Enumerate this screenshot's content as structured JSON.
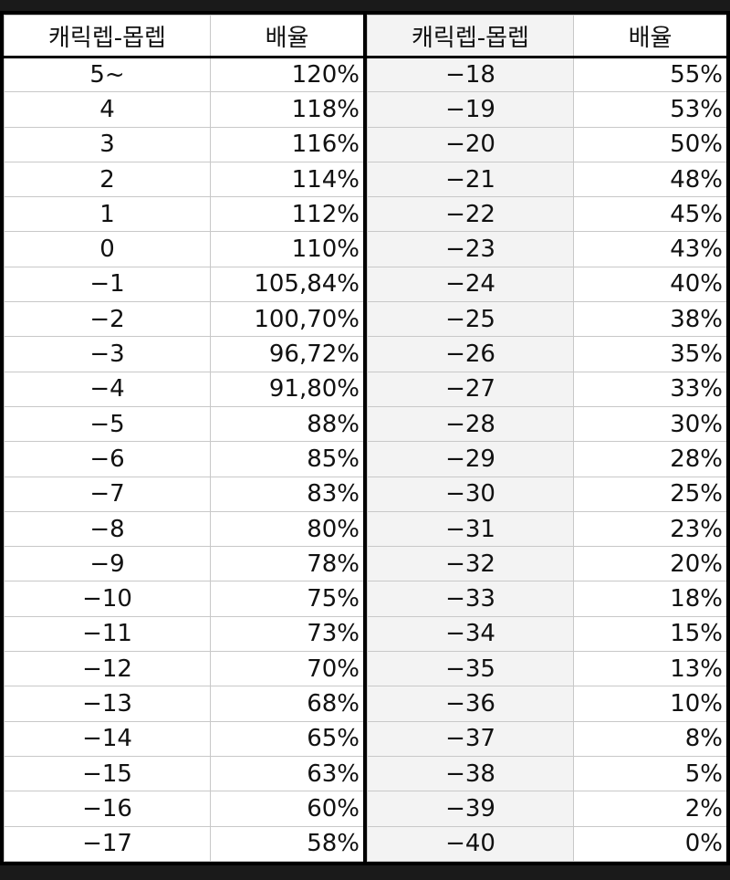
{
  "headers": {
    "level": "캐릭렙-몹렙",
    "rate": "배율"
  },
  "left_rows": [
    {
      "level": "5~",
      "rate": "120%"
    },
    {
      "level": "4",
      "rate": "118%"
    },
    {
      "level": "3",
      "rate": "116%"
    },
    {
      "level": "2",
      "rate": "114%"
    },
    {
      "level": "1",
      "rate": "112%"
    },
    {
      "level": "0",
      "rate": "110%"
    },
    {
      "level": "−1",
      "rate": "105,84%"
    },
    {
      "level": "−2",
      "rate": "100,70%"
    },
    {
      "level": "−3",
      "rate": "96,72%"
    },
    {
      "level": "−4",
      "rate": "91,80%"
    },
    {
      "level": "−5",
      "rate": "88%"
    },
    {
      "level": "−6",
      "rate": "85%"
    },
    {
      "level": "−7",
      "rate": "83%"
    },
    {
      "level": "−8",
      "rate": "80%"
    },
    {
      "level": "−9",
      "rate": "78%"
    },
    {
      "level": "−10",
      "rate": "75%"
    },
    {
      "level": "−11",
      "rate": "73%"
    },
    {
      "level": "−12",
      "rate": "70%"
    },
    {
      "level": "−13",
      "rate": "68%"
    },
    {
      "level": "−14",
      "rate": "65%"
    },
    {
      "level": "−15",
      "rate": "63%"
    },
    {
      "level": "−16",
      "rate": "60%"
    },
    {
      "level": "−17",
      "rate": "58%"
    }
  ],
  "right_rows": [
    {
      "level": "−18",
      "rate": "55%"
    },
    {
      "level": "−19",
      "rate": "53%"
    },
    {
      "level": "−20",
      "rate": "50%"
    },
    {
      "level": "−21",
      "rate": "48%"
    },
    {
      "level": "−22",
      "rate": "45%"
    },
    {
      "level": "−23",
      "rate": "43%"
    },
    {
      "level": "−24",
      "rate": "40%"
    },
    {
      "level": "−25",
      "rate": "38%"
    },
    {
      "level": "−26",
      "rate": "35%"
    },
    {
      "level": "−27",
      "rate": "33%"
    },
    {
      "level": "−28",
      "rate": "30%"
    },
    {
      "level": "−29",
      "rate": "28%"
    },
    {
      "level": "−30",
      "rate": "25%"
    },
    {
      "level": "−31",
      "rate": "23%"
    },
    {
      "level": "−32",
      "rate": "20%"
    },
    {
      "level": "−33",
      "rate": "18%"
    },
    {
      "level": "−34",
      "rate": "15%"
    },
    {
      "level": "−35",
      "rate": "13%"
    },
    {
      "level": "−36",
      "rate": "10%"
    },
    {
      "level": "−37",
      "rate": "8%"
    },
    {
      "level": "−38",
      "rate": "5%"
    },
    {
      "level": "−39",
      "rate": "2%"
    },
    {
      "level": "−40",
      "rate": "0%"
    }
  ]
}
